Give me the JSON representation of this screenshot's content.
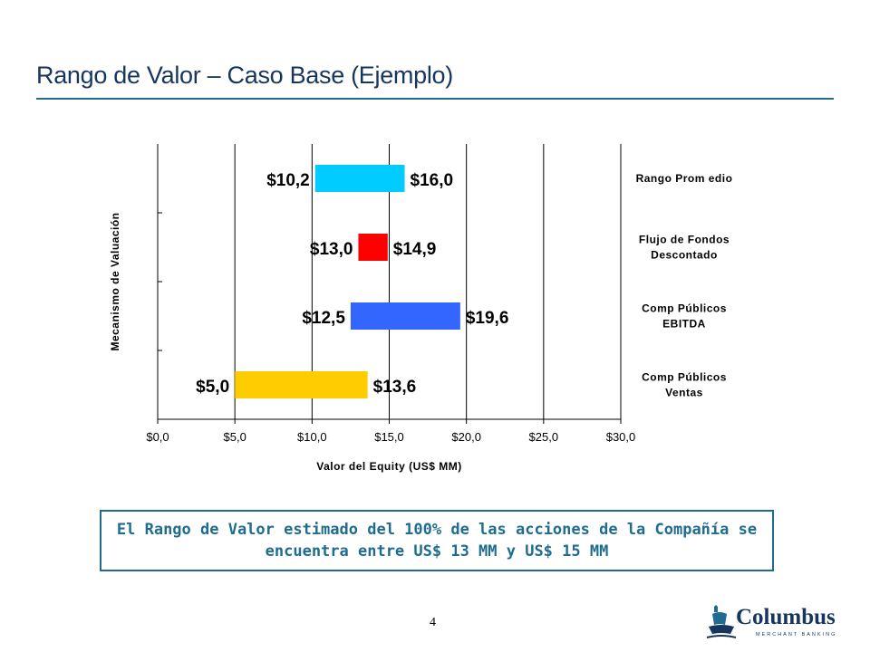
{
  "header": {
    "title": "Rango de Valor – Caso Base (Ejemplo)"
  },
  "chart_data": {
    "type": "bar",
    "subtype": "floating-range",
    "orientation": "horizontal",
    "xlabel": "Valor del Equity (US$ MM)",
    "ylabel": "Mecanismo de Valuación",
    "xlim": [
      0,
      30
    ],
    "x_ticks": [
      "$0,0",
      "$5,0",
      "$10,0",
      "$15,0",
      "$20,0",
      "$25,0",
      "$30,0"
    ],
    "grid": "vertical",
    "categories": [
      {
        "label_lines": [
          "Rango Prom edio"
        ],
        "low": 10.2,
        "high": 16.0,
        "low_label": "$10,2",
        "high_label": "$16,0",
        "color": "#00ccff"
      },
      {
        "label_lines": [
          "Flujo de Fondos",
          "Descontado"
        ],
        "low": 13.0,
        "high": 14.9,
        "low_label": "$13,0",
        "high_label": "$14,9",
        "color": "#ff0000"
      },
      {
        "label_lines": [
          "Comp Públicos",
          "EBITDA"
        ],
        "low": 12.5,
        "high": 19.6,
        "low_label": "$12,5",
        "high_label": "$19,6",
        "color": "#3366ff"
      },
      {
        "label_lines": [
          "Comp Públicos",
          "Ventas"
        ],
        "low": 5.0,
        "high": 13.6,
        "low_label": "$5,0",
        "high_label": "$13,6",
        "color": "#ffcc00"
      }
    ]
  },
  "callout": {
    "text": "El Rango de Valor estimado del 100% de las acciones de la Compañía se encuentra entre US$ 13 MM y US$ 15 MM"
  },
  "footer": {
    "page_number": "4",
    "logo_name": "Columbus",
    "logo_tagline": "MERCHANT BANKING",
    "logo_icon": "columbus-ship-icon"
  }
}
